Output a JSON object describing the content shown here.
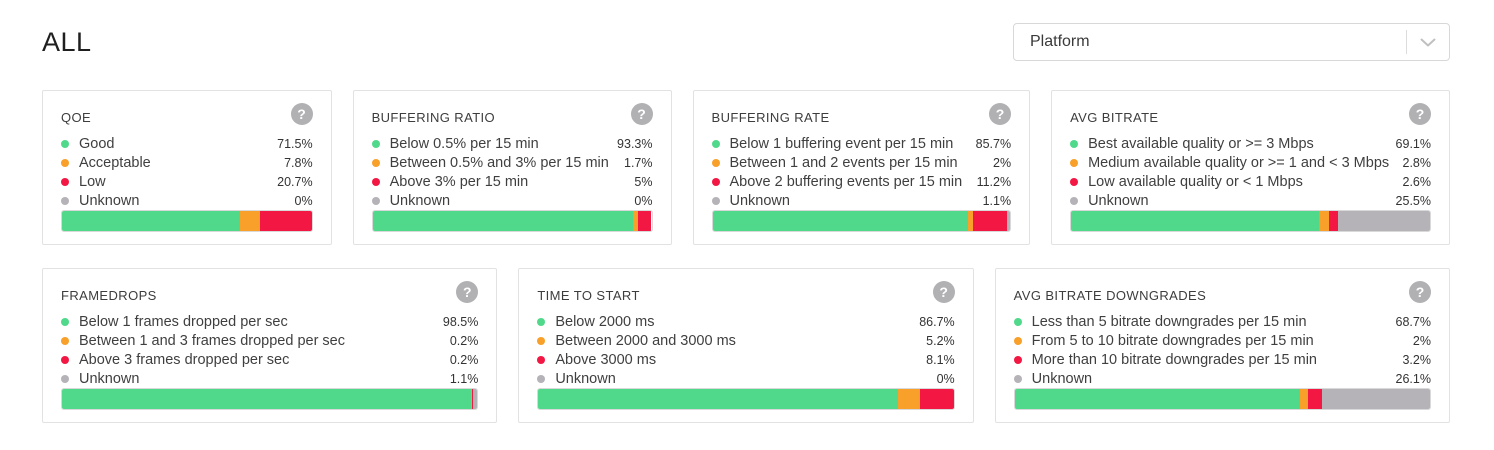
{
  "header": {
    "title": "ALL",
    "filter_label": "Platform"
  },
  "icons": {
    "help_glyph": "?",
    "dropdown_icon": "chevron-down"
  },
  "colors": {
    "good": "#50d98a",
    "warn": "#f8a02a",
    "bad": "#f21843",
    "unknown": "#b5b2b8"
  },
  "cards": [
    {
      "title": "QOE",
      "row": 1,
      "flex": 283,
      "segments": [
        {
          "level": "good",
          "label": "Good",
          "value": "71.5%",
          "pct": 71.5
        },
        {
          "level": "warn",
          "label": "Acceptable",
          "value": "7.8%",
          "pct": 7.8
        },
        {
          "level": "bad",
          "label": "Low",
          "value": "20.7%",
          "pct": 20.7
        },
        {
          "level": "unknown",
          "label": "Unknown",
          "value": "0%",
          "pct": 0
        }
      ]
    },
    {
      "title": "BUFFERING RATIO",
      "row": 1,
      "flex": 316,
      "segments": [
        {
          "level": "good",
          "label": "Below 0.5% per 15 min",
          "value": "93.3%",
          "pct": 93.3
        },
        {
          "level": "warn",
          "label": "Between 0.5% and 3% per 15 min",
          "value": "1.7%",
          "pct": 1.7
        },
        {
          "level": "bad",
          "label": "Above 3% per 15 min",
          "value": "5%",
          "pct": 5
        },
        {
          "level": "unknown",
          "label": "Unknown",
          "value": "0%",
          "pct": 0
        }
      ]
    },
    {
      "title": "BUFFERING RATE",
      "row": 1,
      "flex": 337,
      "segments": [
        {
          "level": "good",
          "label": "Below 1 buffering event per 15 min",
          "value": "85.7%",
          "pct": 85.7
        },
        {
          "level": "warn",
          "label": "Between 1 and 2 events per 15 min",
          "value": "2%",
          "pct": 2
        },
        {
          "level": "bad",
          "label": "Above 2 buffering events per 15 min",
          "value": "11.2%",
          "pct": 11.2
        },
        {
          "level": "unknown",
          "label": "Unknown",
          "value": "1.1%",
          "pct": 1.1
        }
      ]
    },
    {
      "title": "AVG BITRATE",
      "row": 1,
      "flex": 406,
      "segments": [
        {
          "level": "good",
          "label": "Best available quality or >= 3 Mbps",
          "value": "69.1%",
          "pct": 69.1
        },
        {
          "level": "warn",
          "label": "Medium available quality or >= 1 and < 3 Mbps",
          "value": "2.8%",
          "pct": 2.8
        },
        {
          "level": "bad",
          "label": "Low available quality or < 1 Mbps",
          "value": "2.6%",
          "pct": 2.6
        },
        {
          "level": "unknown",
          "label": "Unknown",
          "value": "25.5%",
          "pct": 25.5
        }
      ]
    },
    {
      "title": "FRAMEDROPS",
      "row": 2,
      "flex": 455,
      "segments": [
        {
          "level": "good",
          "label": "Below 1 frames dropped per sec",
          "value": "98.5%",
          "pct": 98.5
        },
        {
          "level": "warn",
          "label": "Between 1 and 3 frames dropped per sec",
          "value": "0.2%",
          "pct": 0.2
        },
        {
          "level": "bad",
          "label": "Above 3 frames dropped per sec",
          "value": "0.2%",
          "pct": 0.2
        },
        {
          "level": "unknown",
          "label": "Unknown",
          "value": "1.1%",
          "pct": 1.1
        }
      ]
    },
    {
      "title": "TIME TO START",
      "row": 2,
      "flex": 455,
      "segments": [
        {
          "level": "good",
          "label": "Below 2000 ms",
          "value": "86.7%",
          "pct": 86.7
        },
        {
          "level": "warn",
          "label": "Between 2000 and 3000 ms",
          "value": "5.2%",
          "pct": 5.2
        },
        {
          "level": "bad",
          "label": "Above 3000 ms",
          "value": "8.1%",
          "pct": 8.1
        },
        {
          "level": "unknown",
          "label": "Unknown",
          "value": "0%",
          "pct": 0
        }
      ]
    },
    {
      "title": "AVG BITRATE DOWNGRADES",
      "row": 2,
      "flex": 455,
      "segments": [
        {
          "level": "good",
          "label": "Less than 5 bitrate downgrades per 15 min",
          "value": "68.7%",
          "pct": 68.7
        },
        {
          "level": "warn",
          "label": "From 5 to 10 bitrate downgrades per 15 min",
          "value": "2%",
          "pct": 2
        },
        {
          "level": "bad",
          "label": "More than 10 bitrate downgrades per 15 min",
          "value": "3.2%",
          "pct": 3.2
        },
        {
          "level": "unknown",
          "label": "Unknown",
          "value": "26.1%",
          "pct": 26.1
        }
      ]
    }
  ]
}
